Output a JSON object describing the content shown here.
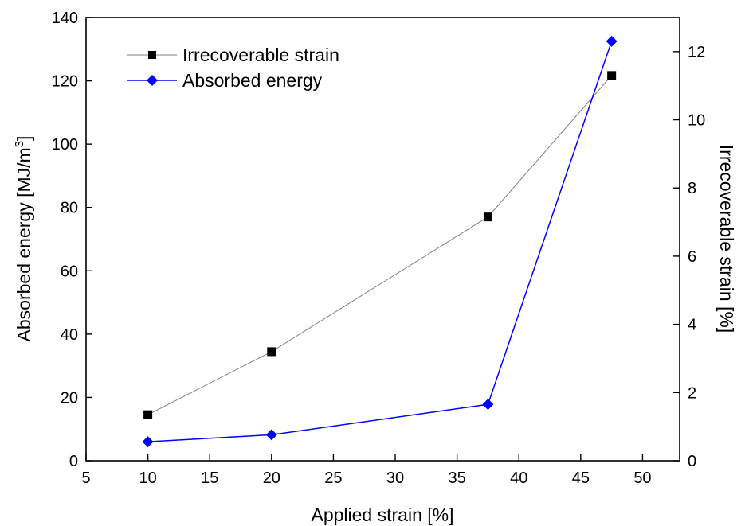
{
  "chart_data": {
    "type": "line",
    "x": [
      10,
      20,
      37.5,
      47.5
    ],
    "xlabel": "Applied strain [%]",
    "xlim": [
      5,
      53
    ],
    "xticks": [
      5,
      10,
      15,
      20,
      25,
      30,
      35,
      40,
      45,
      50
    ],
    "ylabel_left": {
      "main": "Absorbed energy [MJ/m",
      "sup": "3",
      "end": "]"
    },
    "ylim_left": [
      0,
      140
    ],
    "yticks_left": [
      0,
      20,
      40,
      60,
      80,
      100,
      120,
      140
    ],
    "ylabel_right": "Irrecoverable strain [%]",
    "ylim_right": [
      0,
      13
    ],
    "yticks_right": [
      0,
      2,
      4,
      6,
      8,
      10,
      12
    ],
    "legend_position": "top-left",
    "grid": false,
    "series": [
      {
        "name": "Irrecoverable strain",
        "axis": "right",
        "color": "#000000",
        "line_color": "#7f7f7f",
        "marker": "square",
        "values": [
          1.35,
          3.2,
          7.15,
          11.3
        ]
      },
      {
        "name": "Absorbed energy",
        "axis": "left",
        "color": "#0000ff",
        "line_color": "#0000ff",
        "marker": "diamond",
        "values": [
          6,
          8.2,
          17.8,
          132.5
        ]
      }
    ]
  }
}
